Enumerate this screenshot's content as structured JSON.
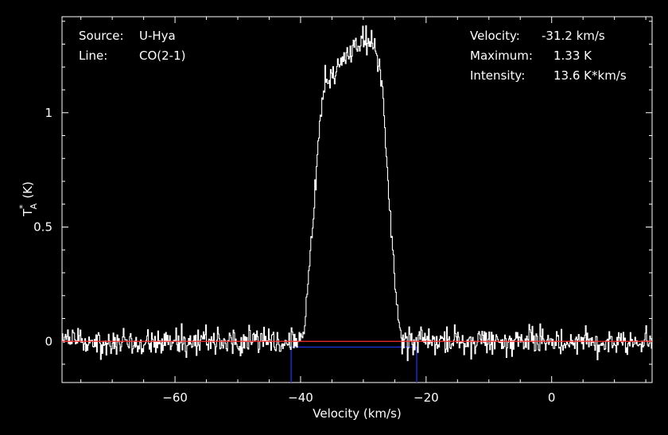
{
  "info": {
    "source_label": "Source:",
    "source_value": "U-Hya",
    "line_label": "Line:",
    "line_value": "CO(2-1)",
    "velocity_label": "Velocity:",
    "velocity_value": "-31.2 km/s",
    "maximum_label": "Maximum:",
    "maximum_value": "1.33 K",
    "intensity_label": "Intensity:",
    "intensity_value": "13.6 K*km/s"
  },
  "chart_data": {
    "type": "line",
    "xlabel": "Velocity (km/s)",
    "ylabel_main": "T",
    "ylabel_sup": "*",
    "ylabel_sub": "A",
    "ylabel_unit": "(K)",
    "xlim": [
      -78,
      16
    ],
    "ylim": [
      -0.18,
      1.42
    ],
    "xticks": [
      -60,
      -40,
      -20,
      0
    ],
    "xtick_labels": [
      "−60",
      "−40",
      "−20",
      "0"
    ],
    "yticks": [
      0,
      0.5,
      1
    ],
    "ytick_labels": [
      "0",
      "0.5",
      "1"
    ],
    "grid": false,
    "baseline_y": 0,
    "window": {
      "x_start": -41.5,
      "x_end": -21.5,
      "level": -0.025,
      "bottom": -0.18
    },
    "series": [
      {
        "style": "step",
        "profile": {
          "x": [
            -78,
            -41,
            -40,
            -39.3,
            -38.7,
            -38.4,
            -38,
            -37.5,
            -37,
            -36.5,
            -36,
            -35.5,
            -35,
            -34,
            -33,
            -32,
            -31,
            -30,
            -29.5,
            -29,
            -28.5,
            -28,
            -27.5,
            -27,
            -26.5,
            -26,
            -25.5,
            -25,
            -24.5,
            -24,
            -23.5,
            -23,
            16
          ],
          "y": [
            0,
            0,
            0,
            0.05,
            0.3,
            0.4,
            0.55,
            0.7,
            0.95,
            1.05,
            1.13,
            1.16,
            1.17,
            1.2,
            1.24,
            1.27,
            1.29,
            1.32,
            1.33,
            1.32,
            1.3,
            1.26,
            1.22,
            1.1,
            0.9,
            0.65,
            0.45,
            0.28,
            0.12,
            0.02,
            0,
            0,
            0
          ]
        },
        "noise_rms": 0.028,
        "step_kms": 0.125
      }
    ]
  }
}
